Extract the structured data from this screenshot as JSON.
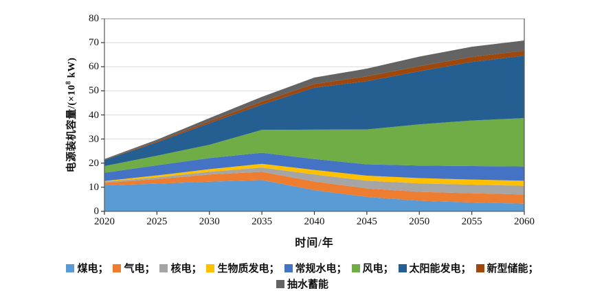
{
  "figure": {
    "y_axis": {
      "title_prefix": "电源装机容量/(×10",
      "title_sup": "8",
      "title_suffix": " kW)",
      "ticks": [
        0,
        10,
        20,
        30,
        40,
        50,
        60,
        70,
        80
      ]
    },
    "x_axis": {
      "title": "时间/年",
      "ticks": [
        2020,
        2025,
        2030,
        2035,
        2040,
        2045,
        2050,
        2055,
        2060
      ]
    },
    "legend": [
      {
        "label": "煤电",
        "sep": "；"
      },
      {
        "label": "气电",
        "sep": "；"
      },
      {
        "label": "核电",
        "sep": "；"
      },
      {
        "label": "生物质发电",
        "sep": "；"
      },
      {
        "label": "常规水电",
        "sep": "；"
      },
      {
        "label": "风电",
        "sep": "；"
      },
      {
        "label": "太阳能发电",
        "sep": "；"
      },
      {
        "label": "新型储能",
        "sep": "；"
      },
      {
        "label": "抽水蓄能",
        "sep": ""
      }
    ],
    "colors": {
      "frame": "#595959",
      "grid": "#d9d9d9",
      "tick": "#333333"
    }
  },
  "chart_data": {
    "type": "area",
    "stacked": true,
    "x": [
      2020,
      2025,
      2030,
      2035,
      2040,
      2045,
      2050,
      2055,
      2060
    ],
    "series": [
      {
        "name": "煤电",
        "color": "#5B9BD5",
        "values": [
          10.8,
          11.5,
          12.3,
          13.0,
          8.8,
          6.0,
          4.4,
          3.7,
          3.2
        ]
      },
      {
        "name": "气电",
        "color": "#ED7D31",
        "values": [
          1.0,
          1.9,
          3.0,
          3.4,
          3.6,
          3.5,
          3.7,
          3.8,
          3.8
        ]
      },
      {
        "name": "核电",
        "color": "#A5A5A5",
        "values": [
          0.5,
          0.7,
          1.1,
          1.8,
          2.9,
          3.2,
          3.5,
          3.6,
          3.6
        ]
      },
      {
        "name": "生物质发电",
        "color": "#FFC000",
        "values": [
          0.3,
          0.8,
          1.1,
          1.5,
          1.9,
          2.1,
          2.2,
          2.1,
          2.1
        ]
      },
      {
        "name": "常规水电",
        "color": "#4472C4",
        "values": [
          3.4,
          4.2,
          4.6,
          4.6,
          4.5,
          4.7,
          5.2,
          5.6,
          5.9
        ]
      },
      {
        "name": "风电",
        "color": "#70AD47",
        "values": [
          2.8,
          4.0,
          5.5,
          9.5,
          12.2,
          14.5,
          17.1,
          18.9,
          20.1
        ]
      },
      {
        "name": "太阳能发电",
        "color": "#255E91",
        "values": [
          2.5,
          5.5,
          9.0,
          10.5,
          17.4,
          20.0,
          22.0,
          24.3,
          25.9
        ]
      },
      {
        "name": "新型储能",
        "color": "#9E480E",
        "values": [
          0.1,
          0.4,
          0.8,
          1.2,
          1.6,
          2.0,
          2.1,
          2.1,
          2.1
        ]
      },
      {
        "name": "抽水蓄能",
        "color": "#636363",
        "values": [
          0.3,
          0.7,
          1.3,
          2.0,
          2.6,
          3.2,
          4.0,
          4.2,
          4.2
        ]
      }
    ],
    "totals": [
      21.7,
      29.7,
      38.7,
      47.5,
      55.5,
      59.2,
      64.2,
      68.3,
      70.9
    ],
    "title": "",
    "xlabel": "时间/年",
    "ylabel": "电源装机容量/(×10⁸ kW)",
    "xlim": [
      2020,
      2060
    ],
    "ylim": [
      0,
      80
    ],
    "grid": "horizontal",
    "legend_position": "bottom"
  }
}
